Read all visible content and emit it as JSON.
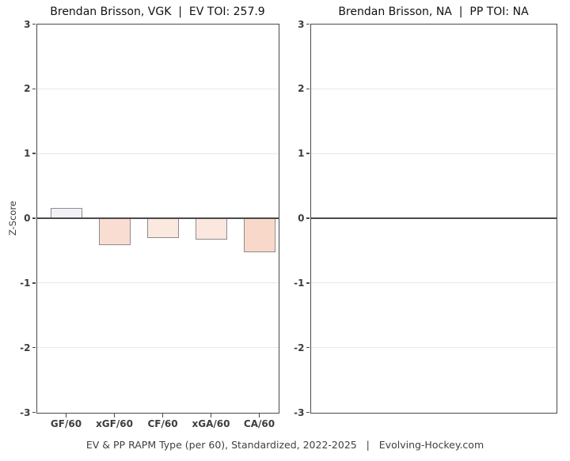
{
  "caption": "EV & PP RAPM Type (per 60), Standardized, 2022-2025   |   Evolving-Hockey.com",
  "chart_data": [
    {
      "type": "bar",
      "title": "Brendan Brisson, VGK  |  EV TOI: 257.9",
      "ylabel": "Z-Score",
      "xlabel": "",
      "ylim": [
        -3,
        3
      ],
      "y_ticks": [
        3,
        2,
        1,
        0,
        -1,
        -2,
        -3
      ],
      "grid": true,
      "zero_line": true,
      "categories": [
        "GF/60",
        "xGF/60",
        "CF/60",
        "xGA/60",
        "CA/60"
      ],
      "values": [
        0.16,
        -0.42,
        -0.31,
        -0.33,
        -0.52
      ],
      "bar_colors": [
        "#f3f1f8",
        "#f9ddd2",
        "#fbe8df",
        "#fbe7de",
        "#f8d9c9"
      ],
      "bar_border_color": "#8c8c8c"
    },
    {
      "type": "bar",
      "title": "Brendan Brisson, NA  |  PP TOI: NA",
      "ylabel": "",
      "xlabel": "",
      "ylim": [
        -3,
        3
      ],
      "y_ticks": [
        3,
        2,
        1,
        0,
        -1,
        -2,
        -3
      ],
      "grid": true,
      "zero_line": true,
      "categories": [],
      "values": []
    }
  ]
}
